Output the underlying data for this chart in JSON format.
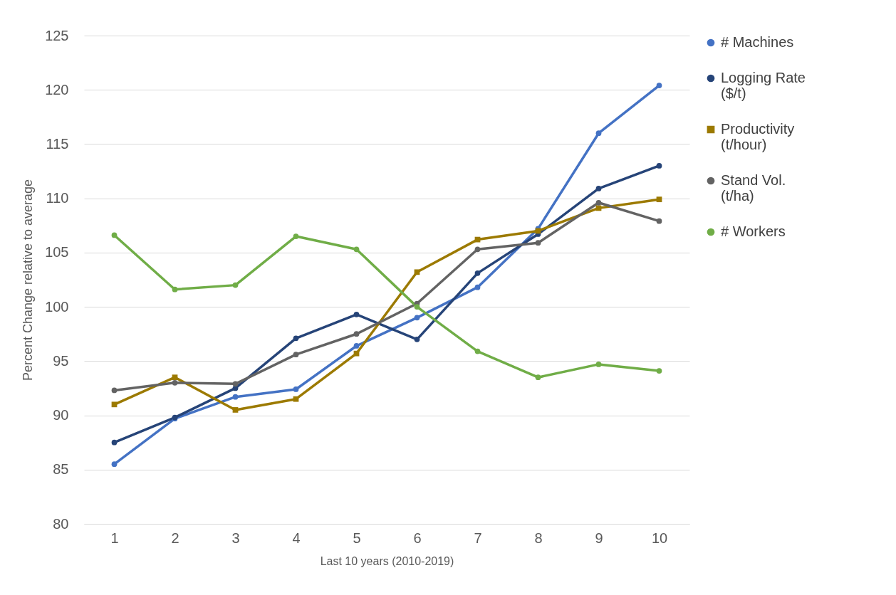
{
  "chart_data": {
    "type": "line",
    "xlabel": "Last 10 years (2010-2019)",
    "ylabel": "Percent Change relative to average",
    "categories": [
      "1",
      "2",
      "3",
      "4",
      "5",
      "6",
      "7",
      "8",
      "9",
      "10"
    ],
    "series": [
      {
        "name": "# Machines",
        "color": "#4472c4",
        "marker": "circle",
        "values": [
          85.5,
          89.7,
          91.7,
          92.4,
          96.4,
          99.0,
          101.8,
          107.2,
          116.0,
          120.4
        ]
      },
      {
        "name": "Logging Rate ($/t)",
        "color": "#264478",
        "marker": "circle",
        "values": [
          87.5,
          89.8,
          92.5,
          97.1,
          99.3,
          97.0,
          103.1,
          106.7,
          110.9,
          113.0
        ]
      },
      {
        "name": "Productivity (t/hour)",
        "color": "#9c7a00",
        "marker": "square",
        "values": [
          91.0,
          93.5,
          90.5,
          91.5,
          95.7,
          103.2,
          106.2,
          107.0,
          109.1,
          109.9
        ]
      },
      {
        "name": "Stand Vol. (t/ha)",
        "color": "#636363",
        "marker": "circle",
        "values": [
          92.3,
          93.0,
          92.9,
          95.6,
          97.5,
          100.3,
          105.3,
          105.9,
          109.6,
          107.9
        ]
      },
      {
        "name": "# Workers",
        "color": "#70ad47",
        "marker": "circle",
        "values": [
          106.6,
          101.6,
          102.0,
          106.5,
          105.3,
          100.0,
          95.9,
          93.5,
          94.7,
          94.1
        ]
      }
    ],
    "ylim": [
      80,
      125
    ],
    "yticks": [
      80,
      85,
      90,
      95,
      100,
      105,
      110,
      115,
      120,
      125
    ],
    "grid": "y",
    "legend": "right",
    "line_style": "solid"
  }
}
